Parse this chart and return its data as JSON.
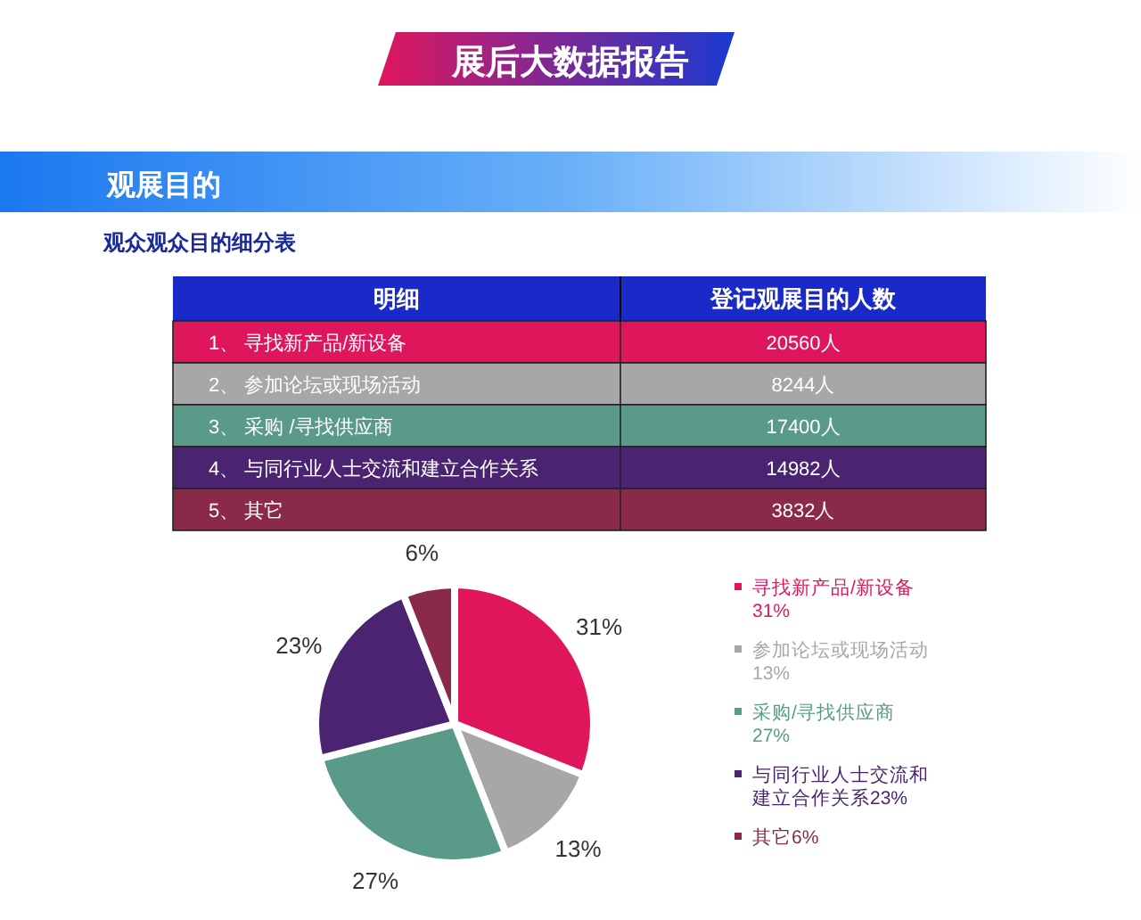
{
  "chart_data": [
    {
      "type": "other",
      "title": "展后大数据报告",
      "subtitle": "观展目的",
      "annotations": [
        "观众观众目的细分表",
        "明细",
        "登记观展目的人数"
      ],
      "categories": [
        "1、 寻找新产品/新设备",
        "2、 参加论坛或现场活动",
        "3、 采购 /寻找供应商",
        "4、 与同行业人士交流和建立合作关系",
        "5、 其它"
      ],
      "values": [
        20560,
        8244,
        17400,
        14982,
        3832
      ],
      "value_labels": [
        "20560人",
        "8244人",
        "17400人",
        "14982人",
        "3832人"
      ],
      "colors": [
        "#e0165c",
        "#a8a6a8",
        "#5a9a88",
        "#4a2470",
        "#8a2a48"
      ]
    },
    {
      "type": "pie",
      "categories": [
        "寻找新产品/新设备",
        "参加论坛或现场活动",
        "采购/寻找供应商",
        "与同行业人士交流和建立合作关系",
        "其它"
      ],
      "values": [
        31,
        13,
        27,
        23,
        6
      ],
      "value_labels": [
        "31%",
        "13%",
        "27%",
        "23%",
        "6%"
      ],
      "colors": [
        "#e0165c",
        "#a8a6a8",
        "#5a9a88",
        "#4a2470",
        "#8a2a48"
      ],
      "legend": "right",
      "data_labels": true
    }
  ]
}
